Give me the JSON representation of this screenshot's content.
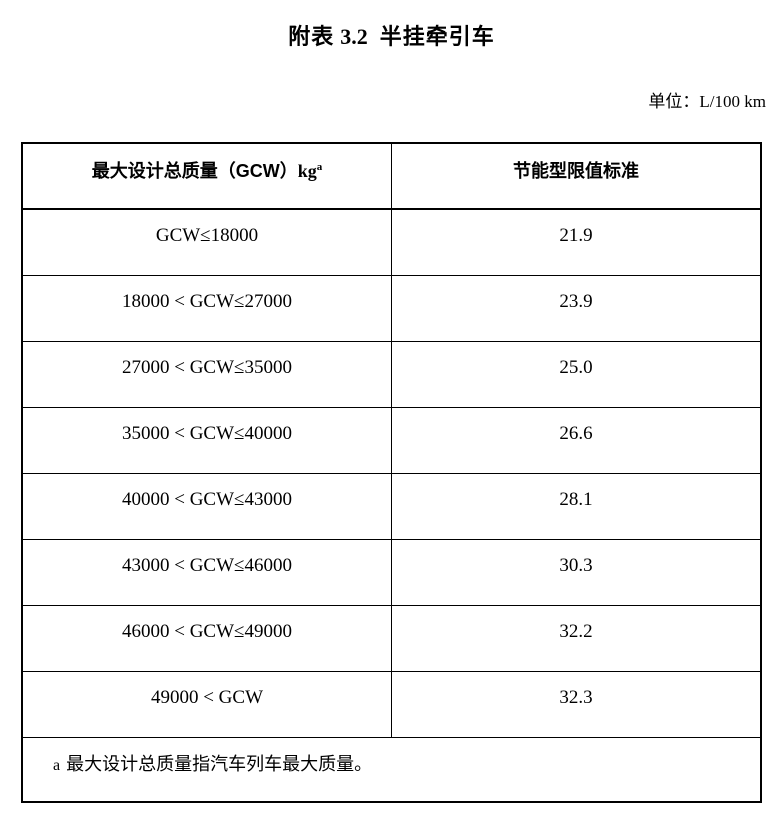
{
  "page": {
    "title": {
      "prefix": "附表",
      "number": "3.2",
      "suffix": "半挂牵引车"
    },
    "unit": {
      "label": "单位：",
      "value": "L/100 km"
    }
  },
  "table": {
    "header": {
      "gcw_label": "最大设计总质量（GCW）",
      "gcw_unit": "kg",
      "gcw_footnote_marker": "a",
      "limit_label": "节能型限值标准"
    },
    "rows": [
      {
        "range": "GCW≤18000",
        "limit": "21.9"
      },
      {
        "range": "18000 < GCW≤27000",
        "limit": "23.9"
      },
      {
        "range": "27000 < GCW≤35000",
        "limit": "25.0"
      },
      {
        "range": "35000 < GCW≤40000",
        "limit": "26.6"
      },
      {
        "range": "40000 < GCW≤43000",
        "limit": "28.1"
      },
      {
        "range": "43000 < GCW≤46000",
        "limit": "30.3"
      },
      {
        "range": "46000 < GCW≤49000",
        "limit": "32.2"
      },
      {
        "range": "49000 < GCW",
        "limit": "32.3"
      }
    ],
    "footnote": {
      "marker": "a",
      "text": "最大设计总质量指汽车列车最大质量。"
    }
  },
  "colors": {
    "text": "#000000",
    "background": "#ffffff",
    "border": "#000000"
  }
}
